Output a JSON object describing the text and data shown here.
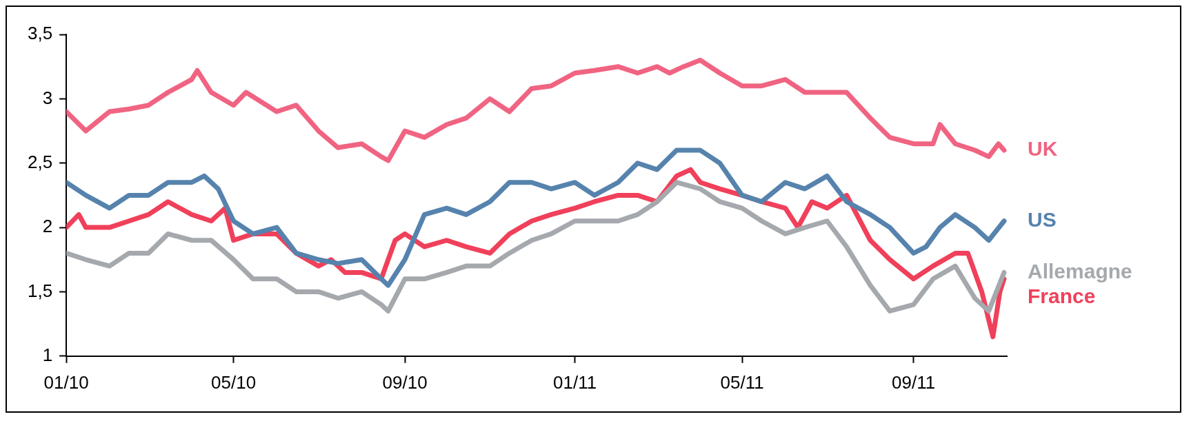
{
  "chart_data": {
    "type": "line",
    "xlim": [
      "2010-01-01",
      "2011-11-07"
    ],
    "ylim": [
      1,
      3.5
    ],
    "xticks": [
      {
        "value": "2010-01-01",
        "label": "01/10"
      },
      {
        "value": "2010-05-01",
        "label": "05/10"
      },
      {
        "value": "2010-09-01",
        "label": "09/10"
      },
      {
        "value": "2011-01-01",
        "label": "01/11"
      },
      {
        "value": "2011-05-01",
        "label": "05/11"
      },
      {
        "value": "2011-09-01",
        "label": "09/11"
      }
    ],
    "yticks": [
      1,
      {
        "value": 1.5,
        "label": "1,5"
      },
      2,
      {
        "value": 2.5,
        "label": "2,5"
      },
      3,
      {
        "value": 3.5,
        "label": "3,5"
      }
    ],
    "grid": false,
    "legend": false,
    "marker": "none",
    "line_style": "solid",
    "series": [
      {
        "name": "UK",
        "color": "#f06482",
        "x": [
          "2010-01-01",
          "2010-01-15",
          "2010-02-01",
          "2010-02-15",
          "2010-03-01",
          "2010-03-15",
          "2010-04-01",
          "2010-04-05",
          "2010-04-15",
          "2010-05-01",
          "2010-05-10",
          "2010-06-01",
          "2010-06-15",
          "2010-07-01",
          "2010-07-15",
          "2010-08-01",
          "2010-08-15",
          "2010-08-20",
          "2010-09-01",
          "2010-09-15",
          "2010-10-01",
          "2010-10-15",
          "2010-11-01",
          "2010-11-15",
          "2010-12-01",
          "2010-12-15",
          "2011-01-01",
          "2011-01-15",
          "2011-02-01",
          "2011-02-15",
          "2011-03-01",
          "2011-03-10",
          "2011-03-20",
          "2011-04-01",
          "2011-04-15",
          "2011-05-01",
          "2011-05-15",
          "2011-06-01",
          "2011-06-15",
          "2011-07-01",
          "2011-07-15",
          "2011-08-01",
          "2011-08-15",
          "2011-09-01",
          "2011-09-15",
          "2011-09-20",
          "2011-10-01",
          "2011-10-15",
          "2011-10-25",
          "2011-11-01",
          "2011-11-05"
        ],
        "values": [
          2.9,
          2.75,
          2.9,
          2.92,
          2.95,
          3.05,
          3.15,
          3.22,
          3.05,
          2.95,
          3.05,
          2.9,
          2.95,
          2.75,
          2.62,
          2.65,
          2.55,
          2.52,
          2.75,
          2.7,
          2.8,
          2.85,
          3.0,
          2.9,
          3.08,
          3.1,
          3.2,
          3.22,
          3.25,
          3.2,
          3.25,
          3.2,
          3.25,
          3.3,
          3.2,
          3.1,
          3.1,
          3.15,
          3.05,
          3.05,
          3.05,
          2.85,
          2.7,
          2.65,
          2.65,
          2.8,
          2.65,
          2.6,
          2.55,
          2.65,
          2.6
        ]
      },
      {
        "name": "US",
        "color": "#5683ad",
        "x": [
          "2010-01-01",
          "2010-01-15",
          "2010-02-01",
          "2010-02-15",
          "2010-03-01",
          "2010-03-15",
          "2010-04-01",
          "2010-04-10",
          "2010-04-20",
          "2010-05-01",
          "2010-05-15",
          "2010-06-01",
          "2010-06-15",
          "2010-07-01",
          "2010-07-15",
          "2010-08-01",
          "2010-08-15",
          "2010-08-20",
          "2010-09-01",
          "2010-09-15",
          "2010-10-01",
          "2010-10-15",
          "2010-11-01",
          "2010-11-15",
          "2010-12-01",
          "2010-12-15",
          "2011-01-01",
          "2011-01-15",
          "2011-02-01",
          "2011-02-15",
          "2011-03-01",
          "2011-03-15",
          "2011-04-01",
          "2011-04-15",
          "2011-05-01",
          "2011-05-15",
          "2011-06-01",
          "2011-06-15",
          "2011-07-01",
          "2011-07-15",
          "2011-08-01",
          "2011-08-15",
          "2011-09-01",
          "2011-09-10",
          "2011-09-20",
          "2011-10-01",
          "2011-10-15",
          "2011-10-25",
          "2011-11-05"
        ],
        "values": [
          2.35,
          2.25,
          2.15,
          2.25,
          2.25,
          2.35,
          2.35,
          2.4,
          2.3,
          2.05,
          1.95,
          2.0,
          1.8,
          1.75,
          1.72,
          1.75,
          1.6,
          1.55,
          1.75,
          2.1,
          2.15,
          2.1,
          2.2,
          2.35,
          2.35,
          2.3,
          2.35,
          2.25,
          2.35,
          2.5,
          2.45,
          2.6,
          2.6,
          2.5,
          2.25,
          2.2,
          2.35,
          2.3,
          2.4,
          2.2,
          2.1,
          2.0,
          1.8,
          1.85,
          2.0,
          2.1,
          2.0,
          1.9,
          2.05
        ]
      },
      {
        "name": "Allemagne",
        "color": "#a5a9ad",
        "x": [
          "2010-01-01",
          "2010-01-15",
          "2010-02-01",
          "2010-02-15",
          "2010-03-01",
          "2010-03-15",
          "2010-04-01",
          "2010-04-15",
          "2010-05-01",
          "2010-05-15",
          "2010-06-01",
          "2010-06-15",
          "2010-07-01",
          "2010-07-15",
          "2010-08-01",
          "2010-08-15",
          "2010-08-20",
          "2010-09-01",
          "2010-09-15",
          "2010-10-01",
          "2010-10-15",
          "2010-11-01",
          "2010-11-15",
          "2010-12-01",
          "2010-12-15",
          "2011-01-01",
          "2011-02-01",
          "2011-02-15",
          "2011-03-01",
          "2011-03-15",
          "2011-04-01",
          "2011-04-15",
          "2011-05-01",
          "2011-05-15",
          "2011-06-01",
          "2011-06-15",
          "2011-07-01",
          "2011-07-15",
          "2011-08-01",
          "2011-08-15",
          "2011-09-01",
          "2011-09-15",
          "2011-10-01",
          "2011-10-15",
          "2011-10-25",
          "2011-11-05"
        ],
        "values": [
          1.8,
          1.75,
          1.7,
          1.8,
          1.8,
          1.95,
          1.9,
          1.9,
          1.75,
          1.6,
          1.6,
          1.5,
          1.5,
          1.45,
          1.5,
          1.4,
          1.35,
          1.6,
          1.6,
          1.65,
          1.7,
          1.7,
          1.8,
          1.9,
          1.95,
          2.05,
          2.05,
          2.1,
          2.2,
          2.35,
          2.3,
          2.2,
          2.15,
          2.05,
          1.95,
          2.0,
          2.05,
          1.85,
          1.55,
          1.35,
          1.4,
          1.6,
          1.7,
          1.45,
          1.35,
          1.65
        ]
      },
      {
        "name": "France",
        "color": "#f0405a",
        "x": [
          "2010-01-01",
          "2010-01-10",
          "2010-01-15",
          "2010-02-01",
          "2010-02-15",
          "2010-03-01",
          "2010-03-15",
          "2010-04-01",
          "2010-04-15",
          "2010-04-25",
          "2010-05-01",
          "2010-05-15",
          "2010-06-01",
          "2010-06-15",
          "2010-07-01",
          "2010-07-10",
          "2010-07-20",
          "2010-08-01",
          "2010-08-15",
          "2010-08-25",
          "2010-09-01",
          "2010-09-15",
          "2010-10-01",
          "2010-10-15",
          "2010-11-01",
          "2010-11-15",
          "2010-12-01",
          "2010-12-15",
          "2011-01-01",
          "2011-01-15",
          "2011-02-01",
          "2011-02-15",
          "2011-03-01",
          "2011-03-15",
          "2011-03-25",
          "2011-04-01",
          "2011-04-15",
          "2011-05-01",
          "2011-05-15",
          "2011-06-01",
          "2011-06-10",
          "2011-06-20",
          "2011-07-01",
          "2011-07-15",
          "2011-08-01",
          "2011-08-15",
          "2011-09-01",
          "2011-09-15",
          "2011-10-01",
          "2011-10-10",
          "2011-10-20",
          "2011-10-28",
          "2011-11-02",
          "2011-11-05"
        ],
        "values": [
          2.0,
          2.1,
          2.0,
          2.0,
          2.05,
          2.1,
          2.2,
          2.1,
          2.05,
          2.15,
          1.9,
          1.95,
          1.95,
          1.8,
          1.7,
          1.75,
          1.65,
          1.65,
          1.6,
          1.9,
          1.95,
          1.85,
          1.9,
          1.85,
          1.8,
          1.95,
          2.05,
          2.1,
          2.15,
          2.2,
          2.25,
          2.25,
          2.2,
          2.4,
          2.45,
          2.35,
          2.3,
          2.25,
          2.2,
          2.15,
          2.0,
          2.2,
          2.15,
          2.25,
          1.9,
          1.75,
          1.6,
          1.7,
          1.8,
          1.8,
          1.5,
          1.15,
          1.5,
          1.6
        ]
      }
    ]
  }
}
